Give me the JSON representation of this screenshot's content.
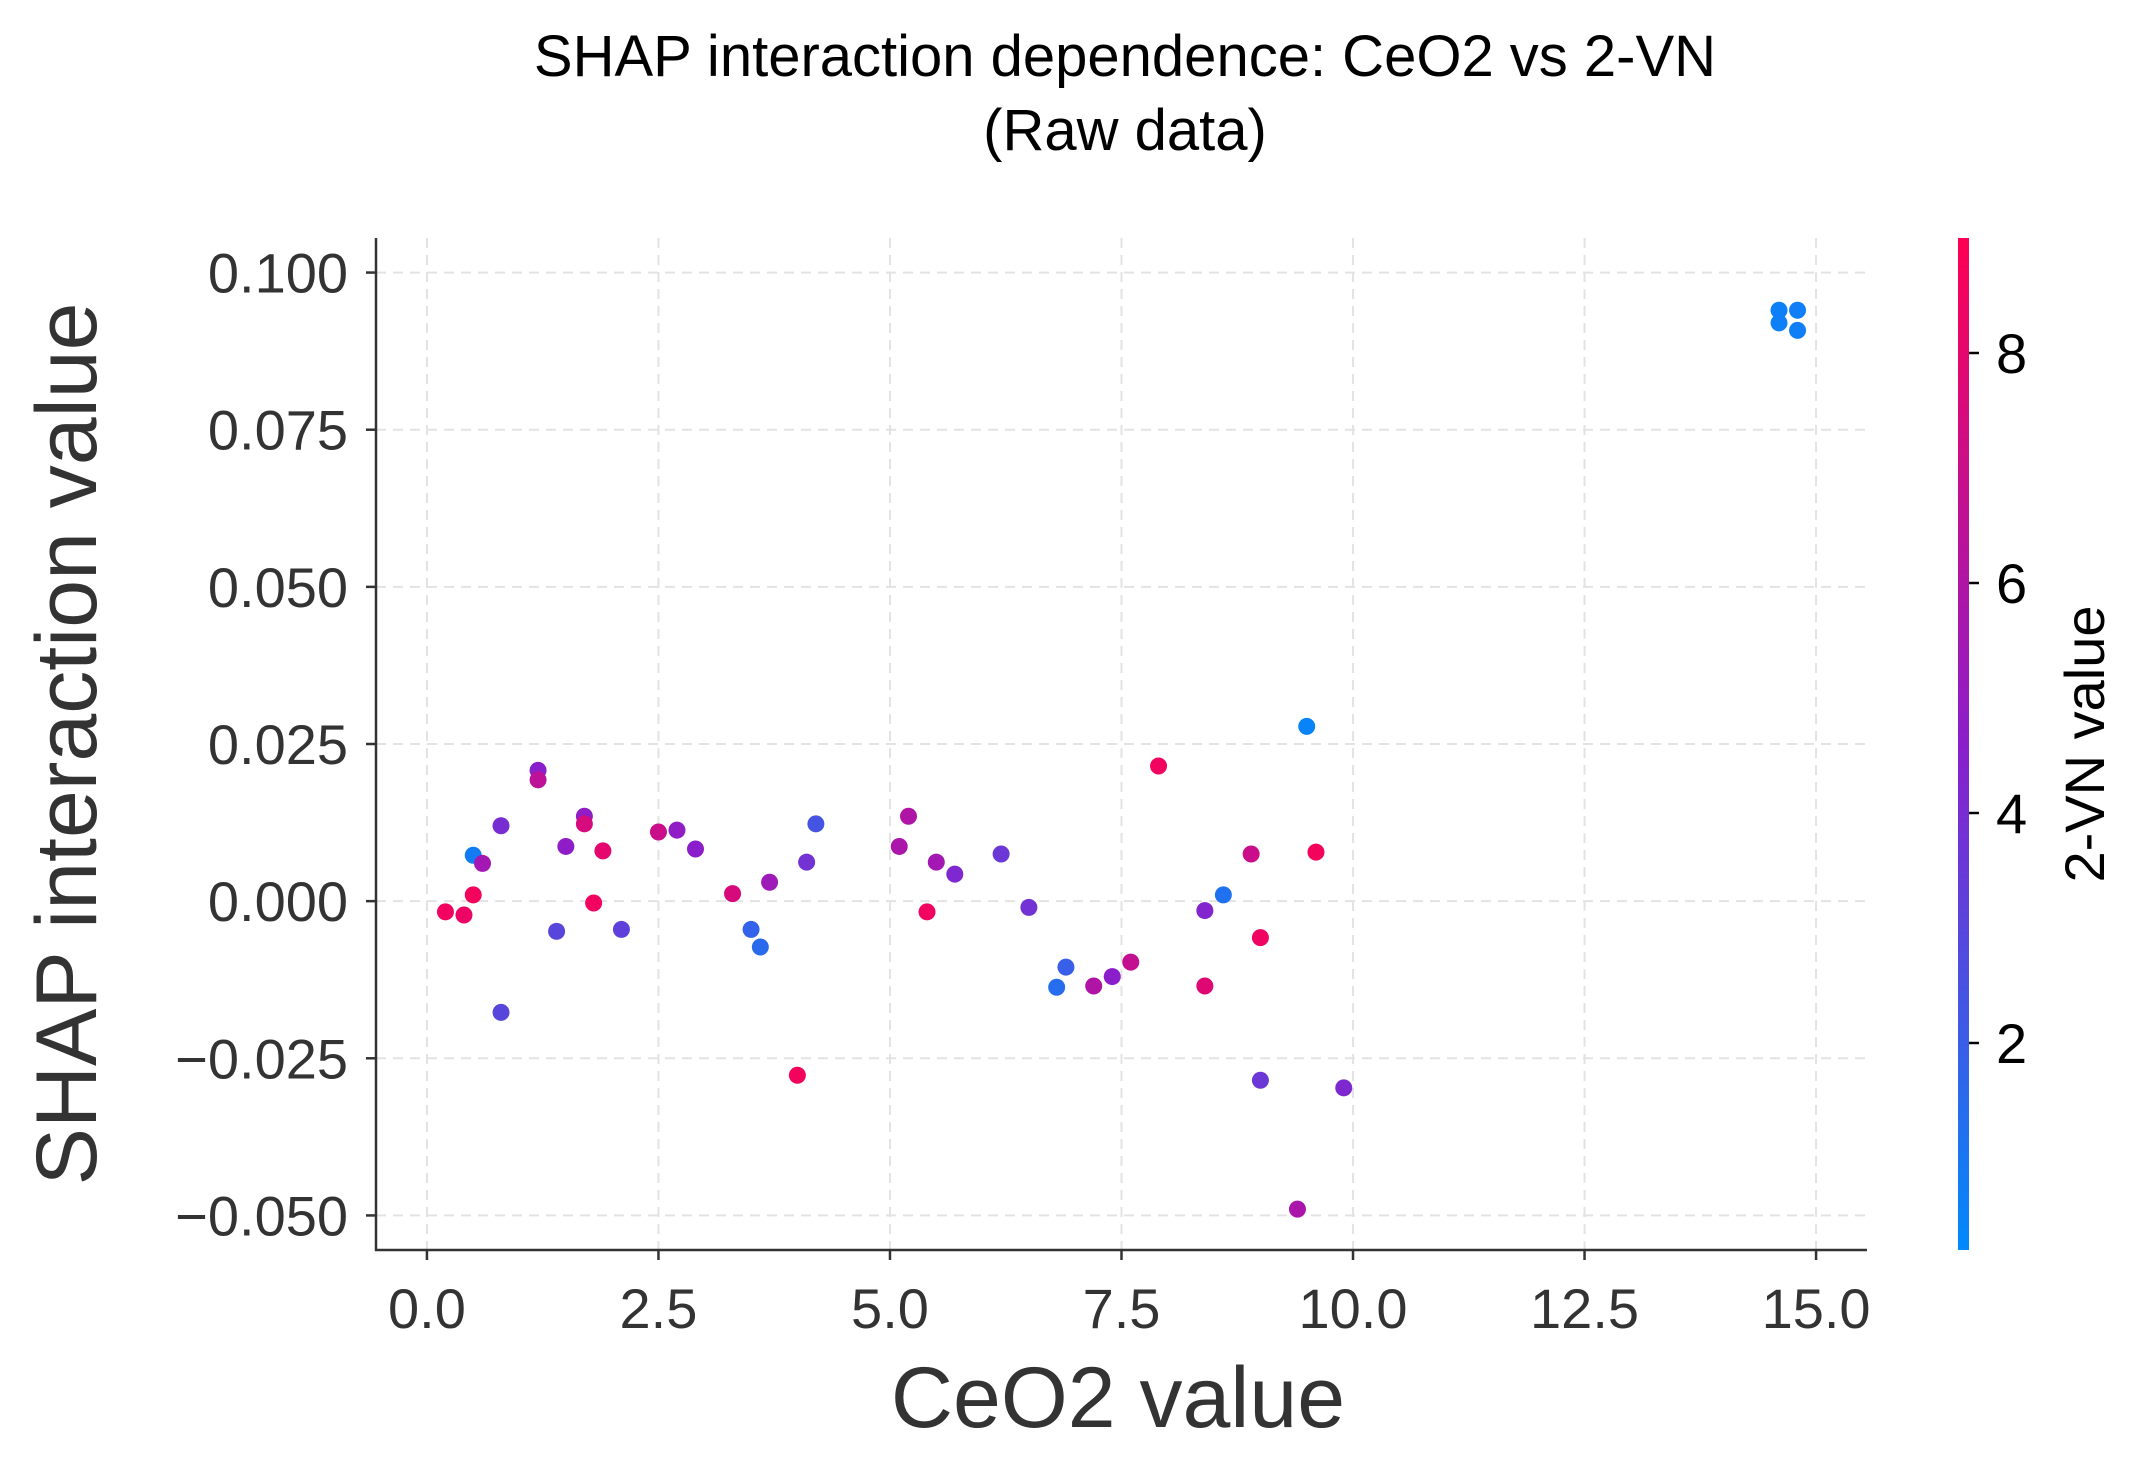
{
  "chart_data": {
    "type": "scatter",
    "title": "SHAP interaction dependence: CeO2 vs 2-VN",
    "subtitle": "(Raw data)",
    "xlabel": "CeO2 value",
    "ylabel": "SHAP interaction value",
    "xlim": [
      -0.55,
      15.55
    ],
    "ylim": [
      -0.0555,
      0.1055
    ],
    "x_ticks": [
      0.0,
      2.5,
      5.0,
      7.5,
      10.0,
      12.5,
      15.0
    ],
    "x_tick_labels": [
      "0.0",
      "2.5",
      "5.0",
      "7.5",
      "10.0",
      "12.5",
      "15.0"
    ],
    "y_ticks": [
      0.1,
      0.075,
      0.05,
      0.025,
      0.0,
      -0.025,
      -0.05
    ],
    "y_tick_labels": [
      "0.100",
      "0.075",
      "0.050",
      "0.025",
      "0.000",
      "−0.025",
      "−0.050"
    ],
    "grid": true,
    "colorbar": {
      "label": "2-VN value",
      "range": [
        0.2,
        9.0
      ],
      "ticks": [
        2,
        4,
        6,
        8
      ],
      "tick_labels": [
        "2",
        "4",
        "6",
        "8"
      ],
      "color_low": "#008afb",
      "color_mid": "#8b1ecb",
      "color_high": "#ff0052"
    },
    "points": [
      {
        "x": 0.2,
        "y": -0.0017,
        "c": 8.5
      },
      {
        "x": 0.4,
        "y": -0.0022,
        "c": 8.3
      },
      {
        "x": 0.5,
        "y": 0.0073,
        "c": 0.8
      },
      {
        "x": 0.5,
        "y": 0.001,
        "c": 8.6
      },
      {
        "x": 0.6,
        "y": 0.006,
        "c": 5.5
      },
      {
        "x": 0.8,
        "y": 0.012,
        "c": 4.0
      },
      {
        "x": 0.8,
        "y": -0.0177,
        "c": 3.0
      },
      {
        "x": 1.2,
        "y": 0.0208,
        "c": 4.5
      },
      {
        "x": 1.2,
        "y": 0.0193,
        "c": 6.5
      },
      {
        "x": 1.4,
        "y": -0.0048,
        "c": 3.0
      },
      {
        "x": 1.5,
        "y": 0.0087,
        "c": 4.7
      },
      {
        "x": 1.7,
        "y": 0.0135,
        "c": 4.8
      },
      {
        "x": 1.7,
        "y": 0.0123,
        "c": 7.4
      },
      {
        "x": 1.8,
        "y": -0.0003,
        "c": 8.5
      },
      {
        "x": 1.9,
        "y": 0.008,
        "c": 8.0
      },
      {
        "x": 2.1,
        "y": -0.0045,
        "c": 3.2
      },
      {
        "x": 2.5,
        "y": 0.011,
        "c": 7.0
      },
      {
        "x": 2.7,
        "y": 0.0113,
        "c": 4.8
      },
      {
        "x": 2.9,
        "y": 0.0083,
        "c": 4.6
      },
      {
        "x": 3.3,
        "y": 0.0012,
        "c": 7.5
      },
      {
        "x": 3.5,
        "y": -0.0045,
        "c": 1.8
      },
      {
        "x": 3.6,
        "y": -0.0073,
        "c": 1.5
      },
      {
        "x": 3.7,
        "y": 0.003,
        "c": 5.3
      },
      {
        "x": 4.0,
        "y": -0.0277,
        "c": 8.6
      },
      {
        "x": 4.1,
        "y": 0.0062,
        "c": 3.8
      },
      {
        "x": 4.2,
        "y": 0.0123,
        "c": 2.4
      },
      {
        "x": 5.1,
        "y": 0.0087,
        "c": 5.8
      },
      {
        "x": 5.2,
        "y": 0.0135,
        "c": 6.0
      },
      {
        "x": 5.4,
        "y": -0.0017,
        "c": 8.5
      },
      {
        "x": 5.5,
        "y": 0.0062,
        "c": 5.5
      },
      {
        "x": 5.7,
        "y": 0.0043,
        "c": 4.2
      },
      {
        "x": 6.2,
        "y": 0.0075,
        "c": 3.6
      },
      {
        "x": 6.5,
        "y": -0.001,
        "c": 3.8
      },
      {
        "x": 6.8,
        "y": -0.0137,
        "c": 1.4
      },
      {
        "x": 6.9,
        "y": -0.0105,
        "c": 2.0
      },
      {
        "x": 7.2,
        "y": -0.0135,
        "c": 6.0
      },
      {
        "x": 7.4,
        "y": -0.012,
        "c": 4.6
      },
      {
        "x": 7.6,
        "y": -0.0097,
        "c": 6.7
      },
      {
        "x": 7.9,
        "y": 0.0215,
        "c": 8.5
      },
      {
        "x": 8.4,
        "y": -0.0015,
        "c": 4.3
      },
      {
        "x": 8.4,
        "y": -0.0135,
        "c": 7.8
      },
      {
        "x": 8.6,
        "y": 0.001,
        "c": 1.2
      },
      {
        "x": 8.9,
        "y": 0.0075,
        "c": 7.0
      },
      {
        "x": 9.0,
        "y": -0.0058,
        "c": 8.4
      },
      {
        "x": 9.0,
        "y": -0.0285,
        "c": 3.6
      },
      {
        "x": 9.4,
        "y": -0.049,
        "c": 5.8
      },
      {
        "x": 9.5,
        "y": 0.0278,
        "c": 0.5
      },
      {
        "x": 9.6,
        "y": 0.0078,
        "c": 8.6
      },
      {
        "x": 9.9,
        "y": -0.0297,
        "c": 4.2
      },
      {
        "x": 14.6,
        "y": 0.094,
        "c": 0.6
      },
      {
        "x": 14.6,
        "y": 0.092,
        "c": 0.6
      },
      {
        "x": 14.8,
        "y": 0.094,
        "c": 0.7
      },
      {
        "x": 14.8,
        "y": 0.0908,
        "c": 0.7
      }
    ]
  }
}
